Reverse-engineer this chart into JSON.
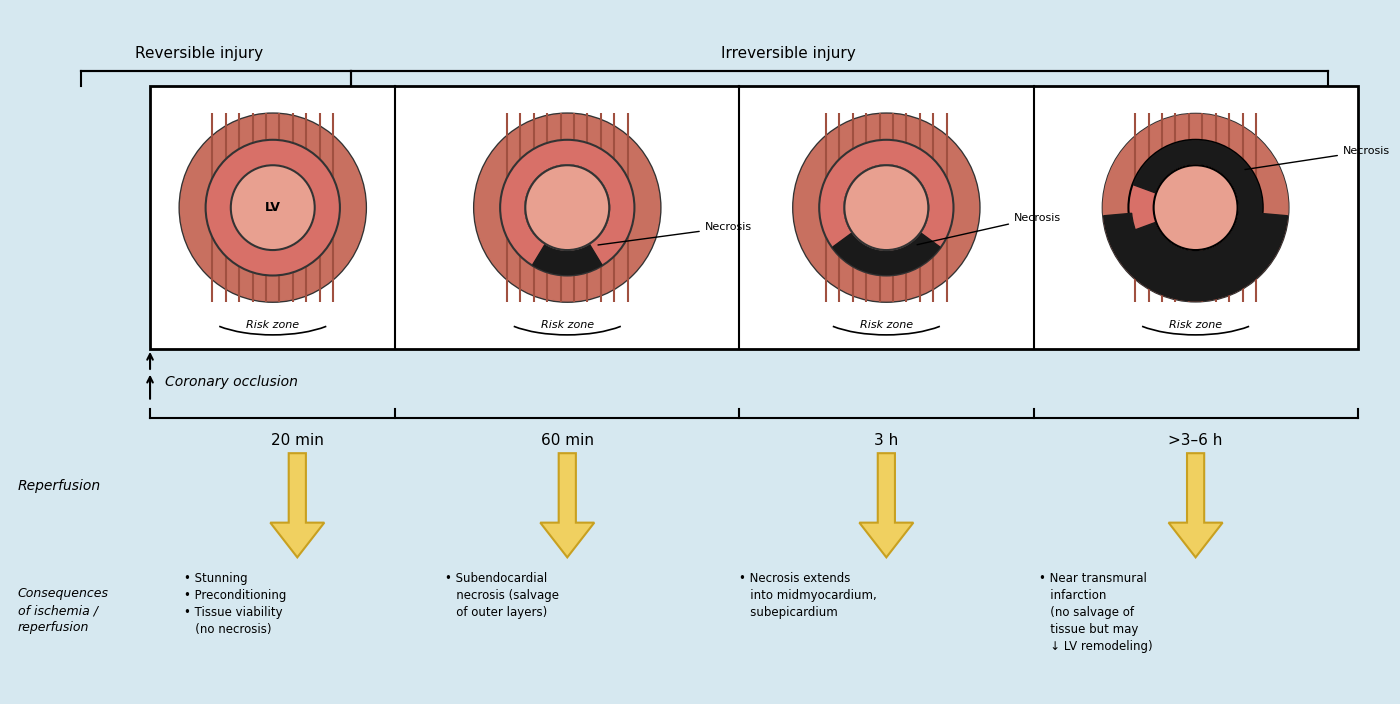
{
  "bg_color": "#d6e8f0",
  "fig_width": 14.0,
  "fig_height": 7.04,
  "title_reversible": "Reversible injury",
  "title_irreversible": "Irreversible injury",
  "time_labels": [
    "20 min",
    "60 min",
    "3 h",
    ">3–6 h"
  ],
  "coronary_label": "Coronary occlusion",
  "reperfusion_label": "Reperfusion",
  "consequences_label": "Consequences\nof ischemia /\nreperfusion",
  "consequence_texts": [
    "• Stunning\n• Preconditioning\n• Tissue viability\n   (no necrosis)",
    "• Subendocardial\n   necrosis (salvage\n   of outer layers)",
    "• Necrosis extends\n   into midmyocardium,\n   subepicardium",
    "• Near transmural\n   infarction\n   (no salvage of\n   tissue but may\n   ↓ LV remodeling)"
  ],
  "necrosis_labels": [
    "",
    "Necrosis",
    "Necrosis",
    "Necrosis"
  ],
  "color_outer": "#c87060",
  "color_inner_lv": "#e8a090",
  "color_necrosis": "#1a1a1a",
  "color_stripe": "#a05040",
  "color_box_bg": "#d6e8f0",
  "color_box_border": "#333333",
  "arrow_color": "#f0d060",
  "arrow_outline": "#c8a020"
}
